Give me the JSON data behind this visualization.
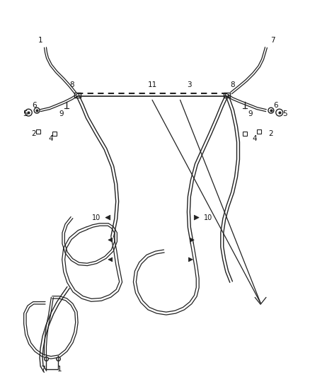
{
  "background_color": "#ffffff",
  "line_color": "#222222",
  "label_color": "#111111",
  "fig_width": 4.38,
  "fig_height": 5.33,
  "dpi": 100,
  "lw_main": 1.4,
  "lw_double": 1.1,
  "lw_thin": 0.8
}
